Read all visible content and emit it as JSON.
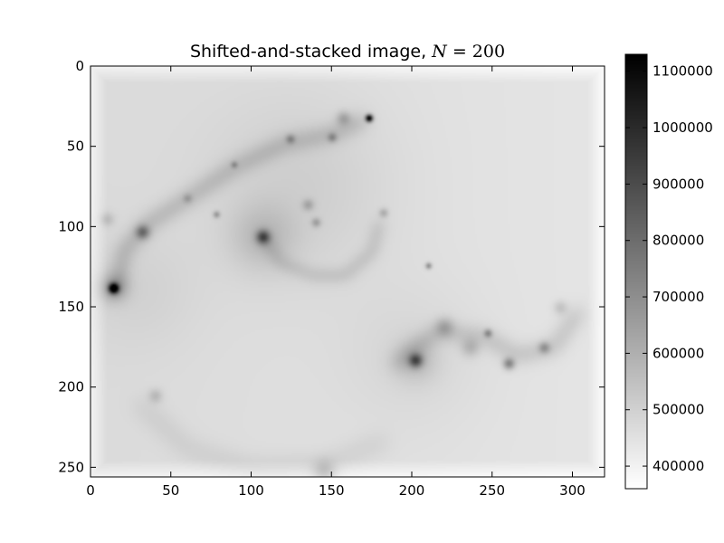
{
  "chart_data": {
    "type": "heatmap",
    "title": "Shifted-and-stacked image, ",
    "title_math_var": "N",
    "title_math_eq": " = ",
    "title_math_value": "200",
    "xlim": [
      0,
      320
    ],
    "ylim": [
      256,
      0
    ],
    "x_ticks": [
      0,
      50,
      100,
      150,
      200,
      250,
      300
    ],
    "y_ticks": [
      0,
      50,
      100,
      150,
      200,
      250
    ],
    "colorbar": {
      "range": [
        360000,
        1130000
      ],
      "ticks": [
        400000,
        500000,
        600000,
        700000,
        800000,
        900000,
        1000000,
        1100000
      ],
      "colormap": "gray_r"
    },
    "background_level": 470000,
    "features": [
      {
        "x": 14,
        "y": 138,
        "peak": 1100000,
        "sigma": 2.2
      },
      {
        "x": 14,
        "y": 138,
        "peak": 620000,
        "sigma": 6
      },
      {
        "x": 173,
        "y": 32,
        "peak": 1120000,
        "sigma": 1.6
      },
      {
        "x": 107,
        "y": 106,
        "peak": 800000,
        "sigma": 3
      },
      {
        "x": 107,
        "y": 106,
        "peak": 560000,
        "sigma": 14
      },
      {
        "x": 32,
        "y": 103,
        "peak": 720000,
        "sigma": 3
      },
      {
        "x": 202,
        "y": 183,
        "peak": 800000,
        "sigma": 3
      },
      {
        "x": 202,
        "y": 183,
        "peak": 560000,
        "sigma": 9
      },
      {
        "x": 260,
        "y": 185,
        "peak": 720000,
        "sigma": 2.5
      },
      {
        "x": 247,
        "y": 166,
        "peak": 680000,
        "sigma": 1.8
      },
      {
        "x": 282,
        "y": 175,
        "peak": 650000,
        "sigma": 2.5
      },
      {
        "x": 210,
        "y": 124,
        "peak": 700000,
        "sigma": 1.4
      },
      {
        "x": 78,
        "y": 92,
        "peak": 650000,
        "sigma": 1.5
      },
      {
        "x": 89,
        "y": 61,
        "peak": 620000,
        "sigma": 1.5
      },
      {
        "x": 124,
        "y": 45,
        "peak": 640000,
        "sigma": 2
      },
      {
        "x": 150,
        "y": 44,
        "peak": 640000,
        "sigma": 2
      },
      {
        "x": 157,
        "y": 32,
        "peak": 600000,
        "sigma": 3
      },
      {
        "x": 140,
        "y": 97,
        "peak": 620000,
        "sigma": 2
      },
      {
        "x": 182,
        "y": 91,
        "peak": 600000,
        "sigma": 2
      },
      {
        "x": 220,
        "y": 162,
        "peak": 600000,
        "sigma": 4
      },
      {
        "x": 236,
        "y": 175,
        "peak": 580000,
        "sigma": 4
      },
      {
        "x": 292,
        "y": 150,
        "peak": 560000,
        "sigma": 3
      },
      {
        "x": 145,
        "y": 252,
        "peak": 580000,
        "sigma": 5
      },
      {
        "x": 40,
        "y": 205,
        "peak": 570000,
        "sigma": 3
      },
      {
        "x": 60,
        "y": 82,
        "peak": 580000,
        "sigma": 2
      },
      {
        "x": 135,
        "y": 86,
        "peak": 600000,
        "sigma": 2.5
      },
      {
        "x": 10,
        "y": 95,
        "peak": 560000,
        "sigma": 3
      }
    ],
    "arm_paths": [
      {
        "points": [
          [
            16,
            138
          ],
          [
            20,
            115
          ],
          [
            35,
            98
          ],
          [
            60,
            82
          ],
          [
            90,
            62
          ],
          [
            120,
            48
          ],
          [
            150,
            42
          ],
          [
            172,
            32
          ]
        ],
        "peak": 530000,
        "sigma": 5
      },
      {
        "points": [
          [
            107,
            106
          ],
          [
            118,
            122
          ],
          [
            138,
            130
          ],
          [
            158,
            130
          ],
          [
            175,
            115
          ],
          [
            180,
            95
          ]
        ],
        "peak": 520000,
        "sigma": 4
      },
      {
        "points": [
          [
            190,
            185
          ],
          [
            215,
            165
          ],
          [
            245,
            168
          ],
          [
            265,
            180
          ],
          [
            288,
            175
          ],
          [
            305,
            150
          ]
        ],
        "peak": 520000,
        "sigma": 5
      },
      {
        "points": [
          [
            30,
            210
          ],
          [
            60,
            238
          ],
          [
            100,
            250
          ],
          [
            145,
            248
          ],
          [
            185,
            232
          ]
        ],
        "peak": 490000,
        "sigma": 6
      }
    ],
    "large_glows": [
      {
        "x": 130,
        "y": 75,
        "peak": 520000,
        "sigma": 40
      },
      {
        "x": 200,
        "y": 180,
        "peak": 500000,
        "sigma": 30
      },
      {
        "x": 30,
        "y": 140,
        "peak": 500000,
        "sigma": 25
      }
    ]
  }
}
